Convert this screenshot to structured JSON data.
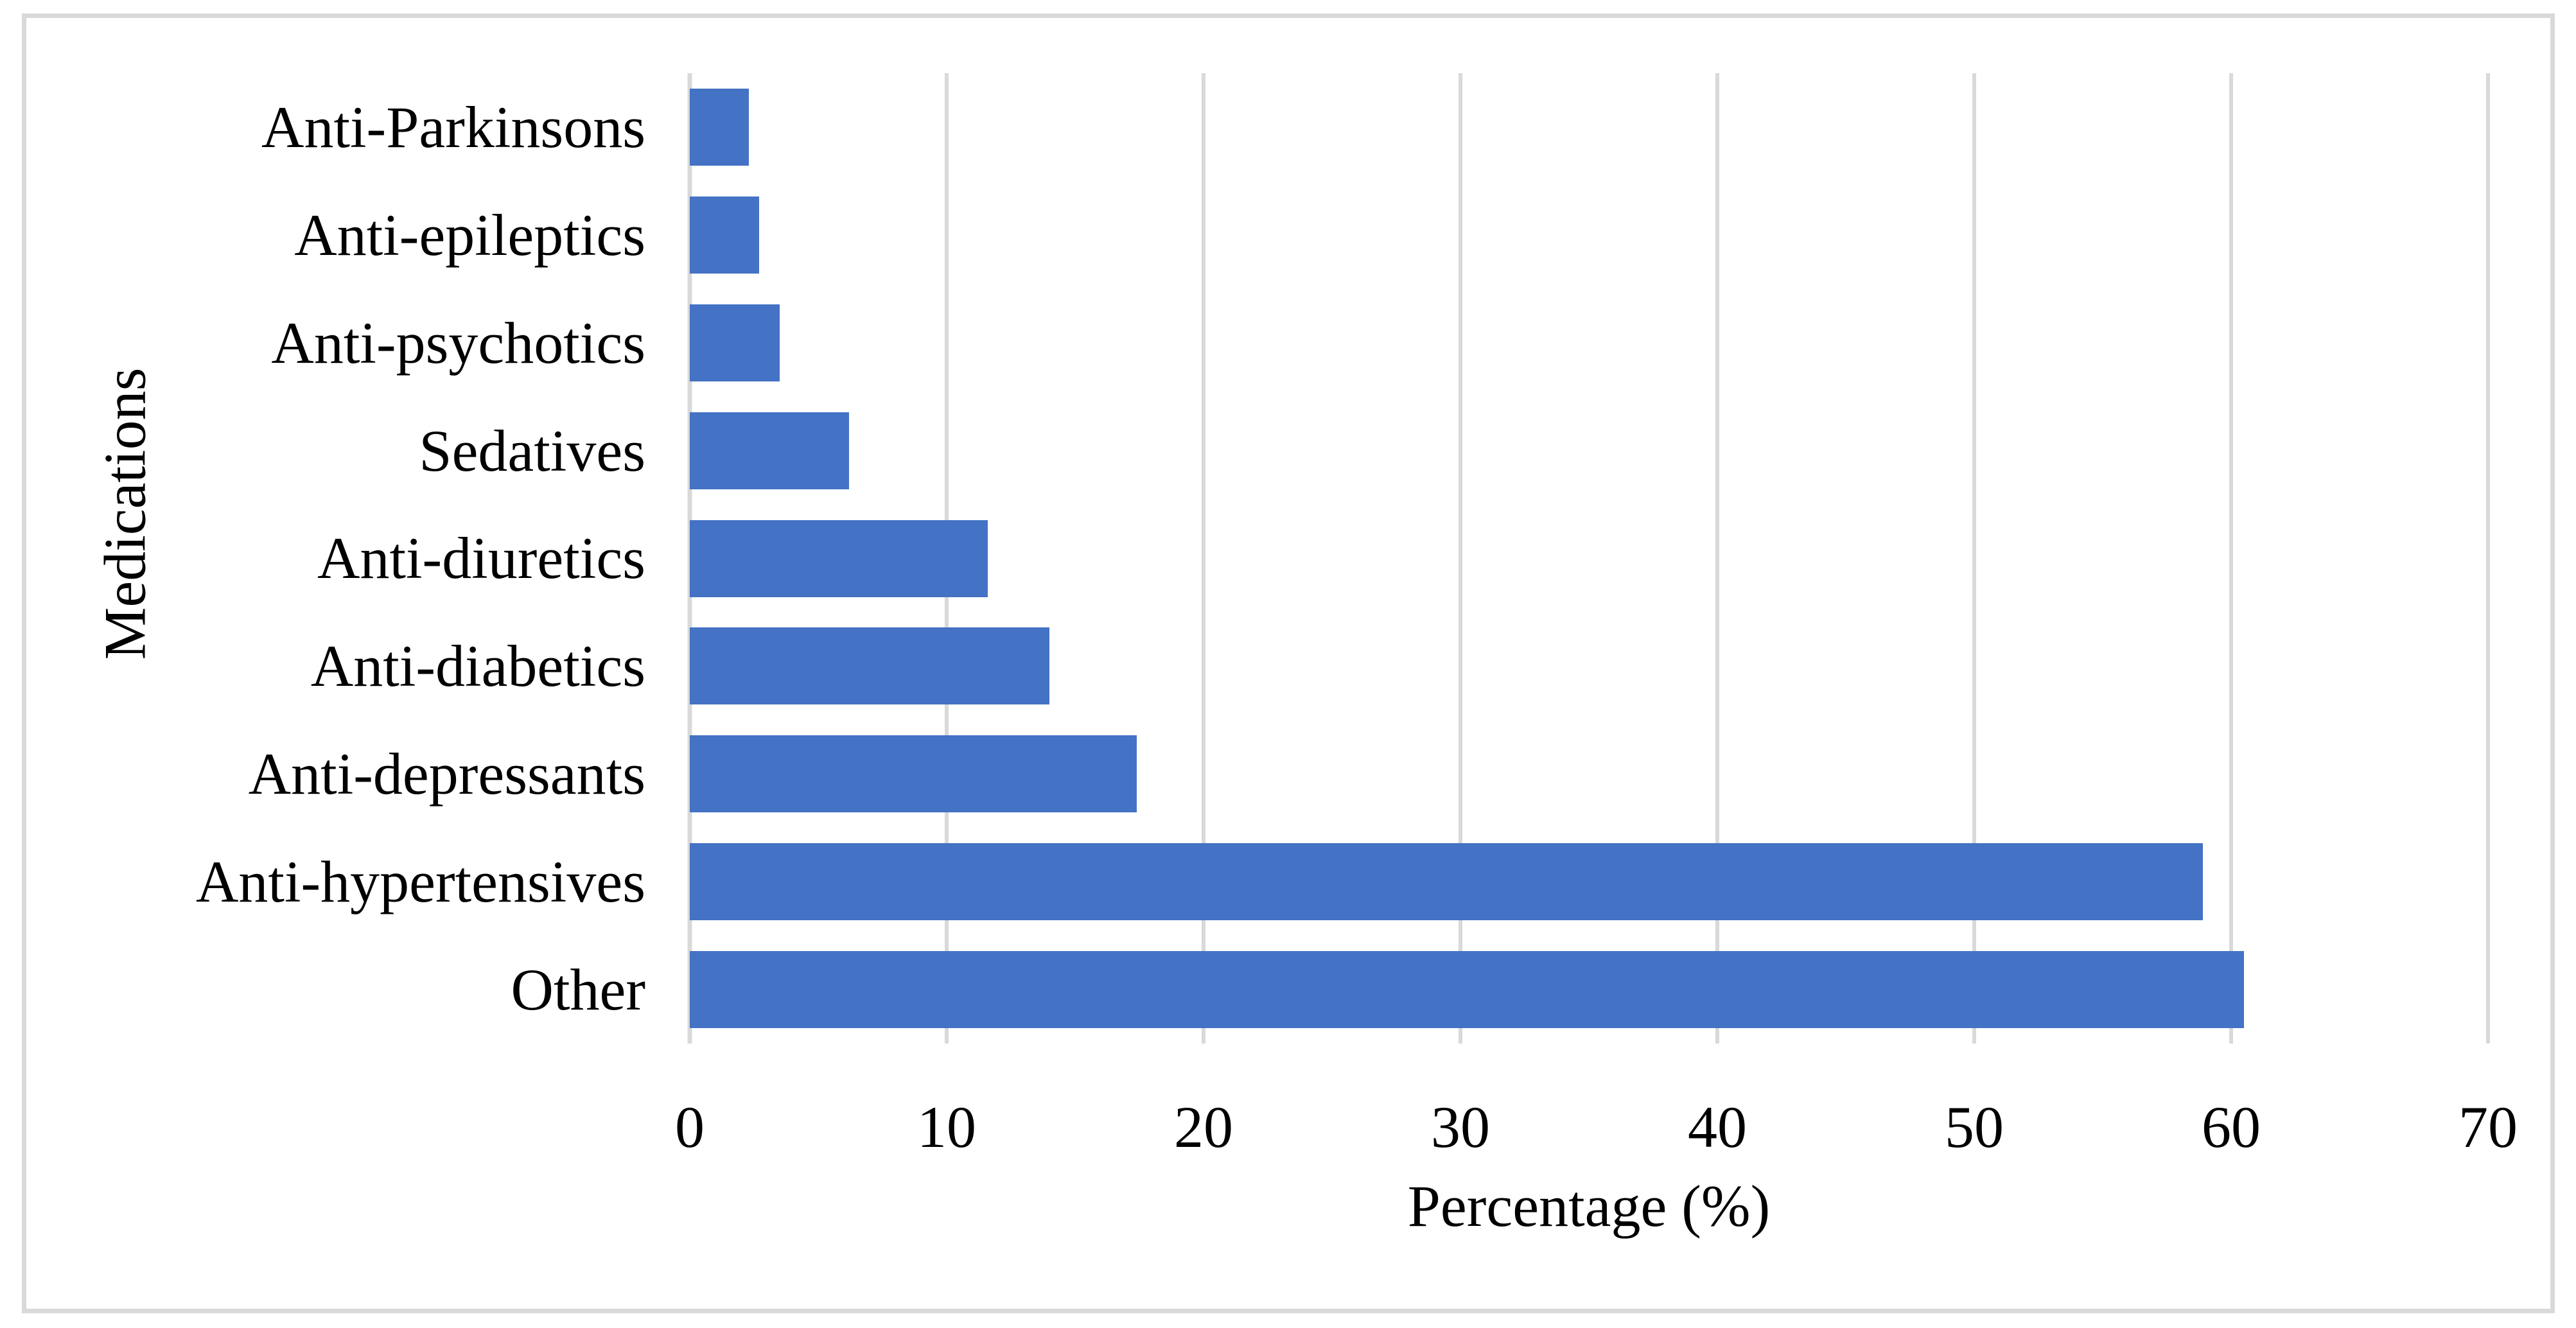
{
  "figure": {
    "background": "#FFFFFF",
    "border_color": "#D9D9D9"
  },
  "chart_data": {
    "type": "bar",
    "orientation": "horizontal",
    "title": "",
    "xlabel": "Percentage (%)",
    "ylabel": "Medications",
    "categories": [
      "Anti-Parkinsons",
      "Anti-epileptics",
      "Anti-psychotics",
      "Sedatives",
      "Anti-diuretics",
      "Anti-diabetics",
      "Anti-depressants",
      "Anti-hypertensives",
      "Other"
    ],
    "values": [
      2.3,
      2.7,
      3.5,
      6.2,
      11.6,
      14.0,
      17.4,
      58.9,
      60.5
    ],
    "xlim": [
      0,
      70
    ],
    "xticks": [
      0,
      10,
      20,
      30,
      40,
      50,
      60,
      70
    ],
    "grid": true,
    "legend": "none",
    "bar_color": "#4472C4",
    "gridline_color": "#D9D9D9",
    "axis_line_color": "#D9D9D9",
    "text_color": "#000000"
  }
}
